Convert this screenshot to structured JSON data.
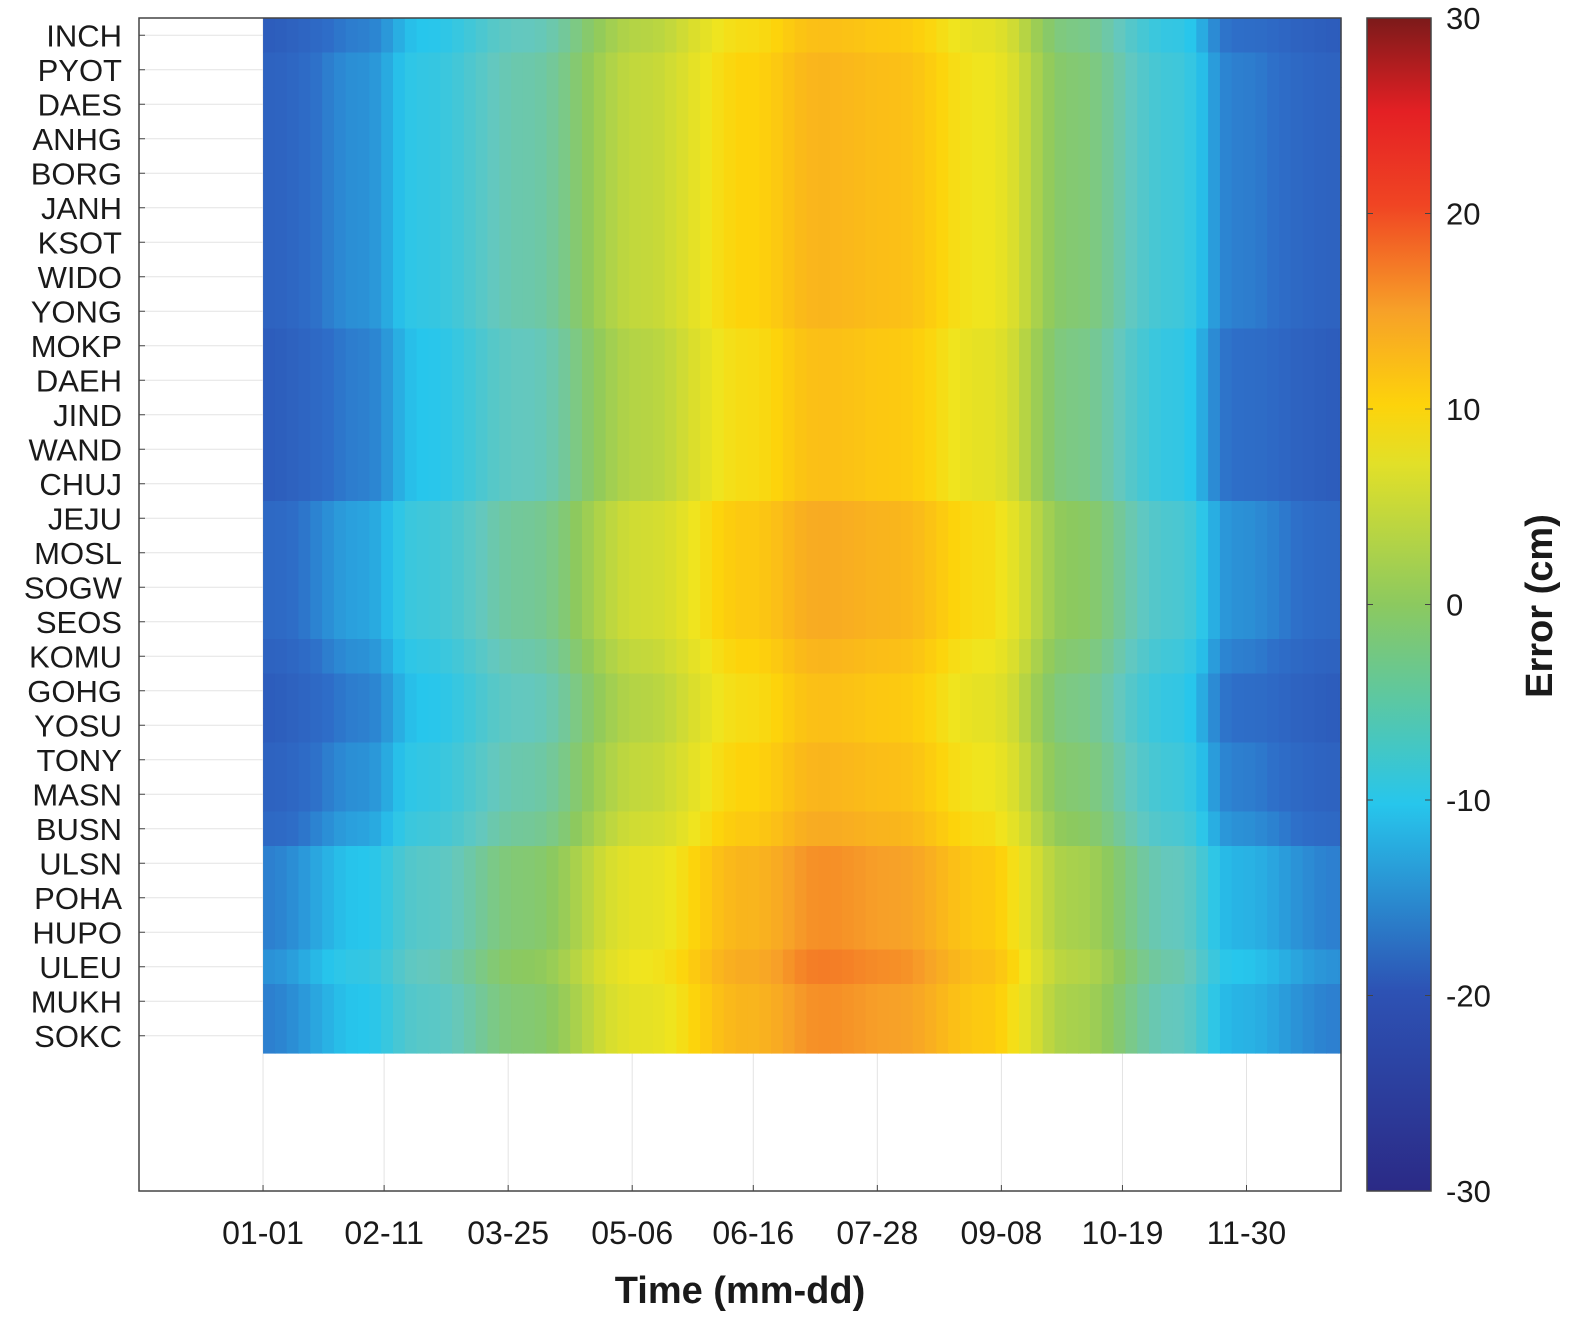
{
  "chart_data": {
    "type": "heatmap",
    "xlabel": "Time (mm-dd)",
    "colorbar_label": "Error (cm)",
    "x_ticks": [
      "01-01",
      "02-11",
      "03-25",
      "05-06",
      "06-16",
      "07-28",
      "09-08",
      "10-19",
      "11-30"
    ],
    "x_tick_days": [
      1,
      42,
      84,
      126,
      167,
      209,
      251,
      292,
      334
    ],
    "x_data_range_days": [
      1,
      366
    ],
    "x_axis_range_days": [
      -41,
      366
    ],
    "stations": [
      "INCH",
      "PYOT",
      "DAES",
      "ANHG",
      "BORG",
      "JANH",
      "KSOT",
      "WIDO",
      "YONG",
      "MOKP",
      "DAEH",
      "JIND",
      "WAND",
      "CHUJ",
      "JEJU",
      "MOSL",
      "SOGW",
      "SEOS",
      "KOMU",
      "GOHG",
      "YOSU",
      "TONY",
      "MASN",
      "BUSN",
      "ULSN",
      "POHA",
      "HUPO",
      "ULEU",
      "MUKH",
      "SOKC"
    ],
    "color_ticks": [
      30,
      20,
      10,
      0,
      -10,
      -20,
      -30
    ],
    "color_range": [
      -30,
      30
    ],
    "colormap": "parula-jet",
    "grid": true,
    "error_profile_by_day": [
      {
        "day": 1,
        "error_cm": -17
      },
      {
        "day": 35,
        "error_cm": -13
      },
      {
        "day": 55,
        "error_cm": -9
      },
      {
        "day": 90,
        "error_cm": -4
      },
      {
        "day": 130,
        "error_cm": 4
      },
      {
        "day": 165,
        "error_cm": 10
      },
      {
        "day": 190,
        "error_cm": 13
      },
      {
        "day": 215,
        "error_cm": 12
      },
      {
        "day": 245,
        "error_cm": 8
      },
      {
        "day": 275,
        "error_cm": -1
      },
      {
        "day": 310,
        "error_cm": -8
      },
      {
        "day": 330,
        "error_cm": -14
      },
      {
        "day": 366,
        "error_cm": -17
      }
    ],
    "station_offsets_cm": [
      {
        "station": "INCH",
        "offset": -1
      },
      {
        "station": "PYOT",
        "offset": 0
      },
      {
        "station": "DAES",
        "offset": 0
      },
      {
        "station": "ANHG",
        "offset": 0
      },
      {
        "station": "BORG",
        "offset": 0
      },
      {
        "station": "JANH",
        "offset": 0
      },
      {
        "station": "KSOT",
        "offset": 0
      },
      {
        "station": "WIDO",
        "offset": 0
      },
      {
        "station": "YONG",
        "offset": 0
      },
      {
        "station": "MOKP",
        "offset": -1
      },
      {
        "station": "DAEH",
        "offset": -1
      },
      {
        "station": "JIND",
        "offset": -1
      },
      {
        "station": "WAND",
        "offset": -1
      },
      {
        "station": "CHUJ",
        "offset": -1
      },
      {
        "station": "JEJU",
        "offset": 1
      },
      {
        "station": "MOSL",
        "offset": 1
      },
      {
        "station": "SOGW",
        "offset": 1
      },
      {
        "station": "SEOS",
        "offset": 1
      },
      {
        "station": "KOMU",
        "offset": 0
      },
      {
        "station": "GOHG",
        "offset": -1
      },
      {
        "station": "YOSU",
        "offset": -1
      },
      {
        "station": "TONY",
        "offset": 0
      },
      {
        "station": "MASN",
        "offset": 0
      },
      {
        "station": "BUSN",
        "offset": 1
      },
      {
        "station": "ULSN",
        "offset": 3
      },
      {
        "station": "POHA",
        "offset": 3
      },
      {
        "station": "HUPO",
        "offset": 3
      },
      {
        "station": "ULEU",
        "offset": 4
      },
      {
        "station": "MUKH",
        "offset": 3
      },
      {
        "station": "SOKC",
        "offset": 3
      }
    ]
  }
}
